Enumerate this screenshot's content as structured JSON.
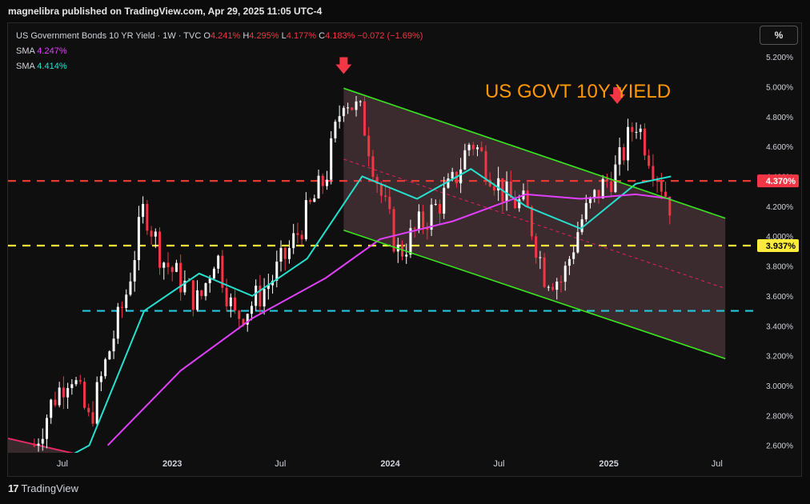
{
  "publisher": "magnelibra published on TradingView.com, Apr 29, 2025 11:05 UTC-4",
  "legend": {
    "title": "US Government Bonds 10 YR Yield · 1W · TVC",
    "o_label": "O",
    "o_val": "4.241%",
    "h_label": "H",
    "h_val": "4.295%",
    "l_label": "L",
    "l_val": "4.177%",
    "c_label": "C",
    "c_val": "4.183%",
    "change": "−0.072 (−1.69%)",
    "sma1_label": "SMA",
    "sma1_val": "4.247%",
    "sma2_label": "SMA",
    "sma2_val": "4.414%"
  },
  "scale_button": "%",
  "footer_brand": "TradingView",
  "footer_logo": "17",
  "chart_data": {
    "type": "line",
    "title": "US GOVT 10Y YIELD",
    "x_ticks": [
      "Jul",
      "2023",
      "Jul",
      "2024",
      "Jul",
      "2025",
      "Jul"
    ],
    "y_ticks": [
      "2.600%",
      "2.800%",
      "3.000%",
      "3.200%",
      "3.400%",
      "3.600%",
      "3.800%",
      "4.000%",
      "4.200%",
      "4.400%",
      "4.600%",
      "4.800%",
      "5.000%",
      "5.200%"
    ],
    "ylim": [
      2.55,
      5.42
    ],
    "price_labels": [
      {
        "value": 4.37,
        "text": "4.370%",
        "color": "#f23645"
      },
      {
        "value": 3.937,
        "text": "3.937%",
        "color": "#ffeb3b"
      }
    ],
    "horizontal_levels": [
      {
        "name": "red-dashed-level",
        "value": 4.37,
        "color": "#e53935"
      },
      {
        "name": "yellow-dashed-level",
        "value": 3.937,
        "color": "#ffeb3b"
      },
      {
        "name": "cyan-dashed-level",
        "value": 3.5,
        "color": "#26c6da"
      }
    ],
    "series": [
      {
        "name": "US10Y weekly close",
        "color": "#f23645",
        "x": [
          "2022-05",
          "2022-06",
          "2022-07",
          "2022-08",
          "2022-09",
          "2022-10",
          "2022-11",
          "2022-12",
          "2023-01",
          "2023-02",
          "2023-03",
          "2023-04",
          "2023-05",
          "2023-06",
          "2023-07",
          "2023-08",
          "2023-09",
          "2023-10",
          "2023-11",
          "2023-12",
          "2024-01",
          "2024-02",
          "2024-03",
          "2024-04",
          "2024-05",
          "2024-06",
          "2024-07",
          "2024-08",
          "2024-09",
          "2024-10",
          "2024-11",
          "2024-12",
          "2025-01",
          "2025-02",
          "2025-03",
          "2025-04"
        ],
        "values": [
          2.6,
          2.9,
          3.1,
          2.75,
          3.2,
          3.6,
          4.2,
          3.85,
          3.7,
          3.55,
          3.9,
          3.45,
          3.55,
          3.7,
          3.9,
          4.15,
          4.4,
          4.95,
          4.8,
          4.3,
          3.88,
          4.05,
          4.18,
          4.35,
          4.65,
          4.45,
          4.25,
          4.2,
          3.75,
          3.7,
          4.1,
          4.3,
          4.45,
          4.78,
          4.5,
          4.2
        ]
      },
      {
        "name": "SMA 4.414%",
        "color": "#26e0d0",
        "x": [
          "2022-05",
          "2022-08",
          "2022-11",
          "2023-02",
          "2023-05",
          "2023-08",
          "2023-11",
          "2024-02",
          "2024-05",
          "2024-08",
          "2024-11",
          "2025-02",
          "2025-04"
        ],
        "values": [
          2.4,
          2.6,
          3.5,
          3.75,
          3.6,
          3.85,
          4.4,
          4.25,
          4.45,
          4.2,
          4.05,
          4.35,
          4.4
        ]
      },
      {
        "name": "SMA 4.247%",
        "color": "#e040fb",
        "x": [
          "2022-09",
          "2023-01",
          "2023-05",
          "2023-09",
          "2023-12",
          "2024-04",
          "2024-08",
          "2024-11",
          "2025-02",
          "2025-04"
        ],
        "values": [
          2.6,
          3.1,
          3.45,
          3.72,
          3.98,
          4.1,
          4.28,
          4.25,
          4.28,
          4.25
        ]
      }
    ],
    "channel": {
      "upper": [
        [
          4.99,
          "2023-10"
        ],
        [
          4.12,
          "2025-07"
        ]
      ],
      "lower": [
        [
          4.04,
          "2023-10"
        ],
        [
          3.18,
          "2025-07"
        ]
      ]
    },
    "arrows": [
      {
        "value": 5.08,
        "x": "2023-10"
      },
      {
        "value": 4.88,
        "x": "2025-01"
      }
    ]
  }
}
